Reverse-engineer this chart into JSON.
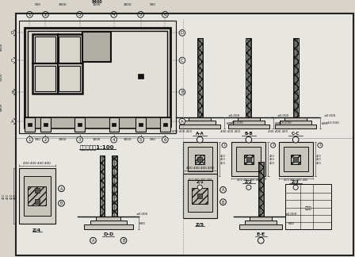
{
  "bg": "#d8d4cc",
  "lc": "#111111",
  "dc": "#333333",
  "wc": "#e8e6e0",
  "plan_title": "基础平面图1:100",
  "sec_labels": [
    "A-A",
    "B-B",
    "C-C"
  ],
  "detail_labels": [
    "Z/1",
    "Z/2",
    "Z/3"
  ],
  "bot_labels": [
    "Z/4",
    "D-D",
    "Z/5",
    "E-E"
  ],
  "bot_sec_labels": [
    "D-D",
    "Z/5",
    "E-E"
  ]
}
